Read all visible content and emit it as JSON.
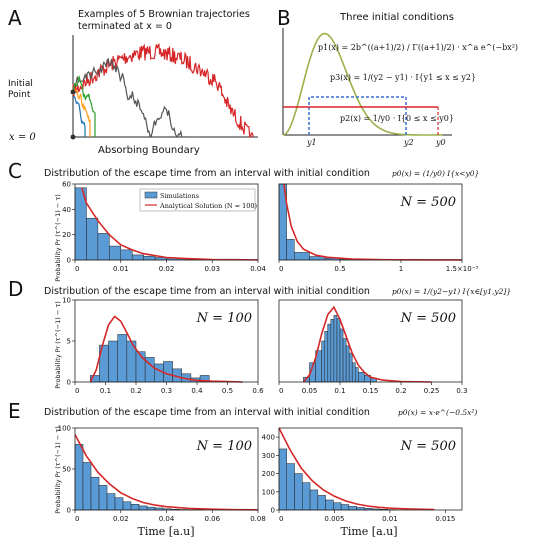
{
  "panel_a": {
    "letter": "A",
    "title_line1": "Examples of 5 Brownian trajectories",
    "title_line2": "terminated at x = 0",
    "ylabel_top": "Initial",
    "ylabel_bottom": "Point",
    "zero_label": "x = 0",
    "xlabel": "Absorbing Boundary",
    "colors": [
      "#d62728",
      "#555555",
      "#2ca02c",
      "#ff9f1c",
      "#1f77b4"
    ]
  },
  "panel_b": {
    "letter": "B",
    "title": "Three initial conditions",
    "p1_label": "p1(x) = 2b^((a+1)/2) / Γ((a+1)/2) · x^a e^(−bx²)",
    "p3_label": "p3(x) = 1/(y2 − y1) · I{y1 ≤ x ≤ y2}",
    "p2_label": "p2(x) = 1/y0 · I{0 ≤ x ≤ y0}",
    "tick_y1": "y1",
    "tick_y2": "y2",
    "tick_y0": "y0",
    "colors": {
      "p1": "#9ab24a",
      "p3": "#3a6fd0",
      "p2": "#d62728"
    }
  },
  "rows": [
    {
      "letter": "C",
      "title": "Distribution of the escape time from an interval with initial condition",
      "condition": "p0(x) = (1/y0) I{x<y0}"
    },
    {
      "letter": "D",
      "title": "Distribution of the escape time from an interval with initial condition",
      "condition": "p0(x) = 1/(y2−y1) I{x∈[y1,y2]}"
    },
    {
      "letter": "E",
      "title": "Distribution of the escape time from an interval with initial condition",
      "condition": "p0(x) = x·e^(−0.5x²)"
    }
  ],
  "legend": {
    "simulations": "Simulations",
    "analytical": "Analytical Solution (N = 100)"
  },
  "ylabel": "Probability Pr (τ^(−1) − τ)",
  "xlabel": "Time [a.u]",
  "bar_color": "#5b9bd5",
  "curve_color": "#d62728",
  "chart_data": [
    {
      "type": "bar",
      "panel": "C-left",
      "label": "N = 100",
      "show_label": false,
      "xlim": [
        0,
        0.04
      ],
      "ylim": [
        0,
        60
      ],
      "xticks": [
        0,
        0.01,
        0.02,
        0.03,
        0.04
      ],
      "xtick_labels": [
        "0",
        "0.01",
        "0.02",
        "0.03",
        "0.04"
      ],
      "yticks": [
        0,
        20,
        40,
        60
      ],
      "ytick_labels": [
        "0",
        "20",
        "40",
        "60"
      ],
      "bin_edges": [
        0,
        0.0025,
        0.005,
        0.0075,
        0.01,
        0.0125,
        0.015,
        0.0175,
        0.02,
        0.0225,
        0.025,
        0.0275,
        0.03,
        0.0325,
        0.035,
        0.0375,
        0.04
      ],
      "values": [
        57,
        33,
        21,
        11,
        8,
        4,
        3,
        2,
        1.5,
        1,
        0.6,
        0.4,
        0.3,
        0.2,
        0.1,
        0.05
      ],
      "curve_x": [
        0.0015,
        0.0025,
        0.005,
        0.0075,
        0.01,
        0.0125,
        0.015,
        0.02,
        0.025,
        0.03,
        0.035,
        0.04
      ],
      "curve_y": [
        57,
        45,
        31,
        20,
        12,
        8,
        5,
        2,
        1,
        0.4,
        0.2,
        0.05
      ]
    },
    {
      "type": "bar",
      "panel": "C-right",
      "label": "N = 500",
      "show_label": true,
      "xlim": [
        0,
        0.0015
      ],
      "ylim": [
        0,
        7000
      ],
      "xticks": [
        0,
        0.0005,
        0.001,
        0.0015
      ],
      "xtick_labels": [
        "0",
        "0.5",
        "1",
        "1.5×10⁻³"
      ],
      "yticks": [],
      "ytick_labels": [],
      "bin_edges": [
        0,
        6.25e-05,
        0.000125,
        0.00025,
        0.000375,
        0.0005,
        0.000625,
        0.00075,
        0.000875,
        0.001,
        0.00125,
        0.0015
      ],
      "values": [
        7000,
        1900,
        700,
        320,
        160,
        90,
        50,
        30,
        20,
        12,
        6
      ],
      "curve_x": [
        4e-05,
        6.25e-05,
        0.0001,
        0.00015,
        0.0002,
        0.0003,
        0.0004,
        0.0006,
        0.0008,
        0.001,
        0.0015
      ],
      "curve_y": [
        7000,
        5200,
        3100,
        1700,
        1000,
        450,
        250,
        90,
        40,
        20,
        5
      ]
    },
    {
      "type": "bar",
      "panel": "D-left",
      "label": "N = 100",
      "show_label": true,
      "xlim": [
        0,
        0.6
      ],
      "ylim": [
        0,
        10
      ],
      "xticks": [
        0,
        0.1,
        0.2,
        0.3,
        0.4,
        0.5,
        0.6
      ],
      "xtick_labels": [
        "0",
        "0.1",
        "0.2",
        "0.3",
        "0.4",
        "0.5",
        "0.6"
      ],
      "yticks": [
        0,
        5,
        10
      ],
      "ytick_labels": [
        "0",
        "5",
        "10"
      ],
      "bin_edges": [
        0.05,
        0.08,
        0.11,
        0.14,
        0.17,
        0.2,
        0.23,
        0.26,
        0.29,
        0.32,
        0.35,
        0.38,
        0.41,
        0.44
      ],
      "values": [
        0.8,
        4.5,
        5.0,
        5.8,
        5.0,
        3.7,
        3.0,
        2.2,
        2.5,
        1.6,
        1.0,
        0.5,
        0.8
      ],
      "curve_x": [
        0.05,
        0.07,
        0.09,
        0.11,
        0.13,
        0.15,
        0.17,
        0.19,
        0.22,
        0.26,
        0.3,
        0.35,
        0.4,
        0.45,
        0.5,
        0.55
      ],
      "curve_y": [
        0,
        1.5,
        4.5,
        7.0,
        8.0,
        7.4,
        6.0,
        4.5,
        3.0,
        1.7,
        1.0,
        0.5,
        0.2,
        0.1,
        0.05,
        0
      ]
    },
    {
      "type": "bar",
      "panel": "D-right",
      "label": "N = 500",
      "show_label": true,
      "xlim": [
        0,
        0.3
      ],
      "ylim": [
        0,
        17
      ],
      "xticks": [
        0,
        0.05,
        0.1,
        0.15,
        0.2,
        0.25,
        0.3
      ],
      "xtick_labels": [
        "0",
        "0.05",
        "0.1",
        "0.15",
        "0.2",
        "0.25",
        "0.3"
      ],
      "yticks": [],
      "ytick_labels": [],
      "bin_edges": [
        0.04,
        0.05,
        0.06,
        0.07,
        0.075,
        0.08,
        0.085,
        0.09,
        0.095,
        0.1,
        0.105,
        0.11,
        0.115,
        0.12,
        0.125,
        0.13,
        0.14,
        0.15,
        0.16
      ],
      "values": [
        1,
        4,
        6.5,
        8.5,
        10.5,
        12,
        13,
        13.8,
        13.2,
        11,
        9,
        7.5,
        6,
        4,
        3,
        2,
        1.4,
        0.8
      ],
      "curve_x": [
        0.04,
        0.05,
        0.06,
        0.07,
        0.08,
        0.09,
        0.1,
        0.11,
        0.12,
        0.13,
        0.14,
        0.15,
        0.17,
        0.2,
        0.25
      ],
      "curve_y": [
        0,
        1.5,
        5,
        10,
        14,
        15.5,
        13,
        9.5,
        6,
        3.5,
        2,
        1,
        0.4,
        0.1,
        0
      ]
    },
    {
      "type": "bar",
      "panel": "E-left",
      "label": "N = 100",
      "show_label": true,
      "xlim": [
        0,
        0.08
      ],
      "ylim": [
        0,
        100
      ],
      "xticks": [
        0,
        0.02,
        0.04,
        0.06,
        0.08
      ],
      "xtick_labels": [
        "0",
        "0.02",
        "0.04",
        "0.06",
        "0.08"
      ],
      "yticks": [
        0,
        50,
        100
      ],
      "ytick_labels": [
        "0",
        "50",
        "100"
      ],
      "bin_edges": [
        0,
        0.0035,
        0.007,
        0.0105,
        0.014,
        0.0175,
        0.021,
        0.0245,
        0.028,
        0.0315,
        0.035,
        0.0385,
        0.042,
        0.0455,
        0.049,
        0.0525,
        0.056
      ],
      "values": [
        80,
        58,
        40,
        30,
        20,
        15,
        10,
        7,
        5,
        3.5,
        2.5,
        1.5,
        1,
        0.6,
        0.4,
        0.2
      ],
      "curve_x": [
        0,
        0.005,
        0.01,
        0.015,
        0.02,
        0.025,
        0.03,
        0.035,
        0.04,
        0.05,
        0.06,
        0.07,
        0.08
      ],
      "curve_y": [
        92,
        66,
        46,
        32,
        21,
        14,
        9,
        6,
        4,
        2,
        1,
        0.4,
        0.2
      ]
    },
    {
      "type": "bar",
      "panel": "E-right",
      "label": "N = 500",
      "show_label": true,
      "xlim": [
        0,
        0.0165
      ],
      "ylim": [
        0,
        450
      ],
      "xticks": [
        0,
        0.005,
        0.01,
        0.015
      ],
      "xtick_labels": [
        "0",
        "0.005",
        "0.01",
        "0.015"
      ],
      "yticks": [
        0,
        100,
        200,
        300,
        400
      ],
      "ytick_labels": [
        "0",
        "100",
        "200",
        "300",
        "400"
      ],
      "bin_edges": [
        0,
        0.0007,
        0.0014,
        0.0021,
        0.0028,
        0.0035,
        0.0042,
        0.0049,
        0.0056,
        0.0063,
        0.007,
        0.0077,
        0.0084,
        0.0091,
        0.0098,
        0.0105
      ],
      "values": [
        335,
        255,
        200,
        150,
        110,
        80,
        55,
        40,
        30,
        20,
        14,
        9,
        6,
        4,
        2
      ],
      "curve_x": [
        0,
        0.001,
        0.002,
        0.003,
        0.004,
        0.005,
        0.006,
        0.007,
        0.008,
        0.009,
        0.01,
        0.012,
        0.014
      ],
      "curve_y": [
        450,
        330,
        230,
        160,
        110,
        75,
        50,
        33,
        22,
        15,
        10,
        5,
        2
      ]
    }
  ]
}
